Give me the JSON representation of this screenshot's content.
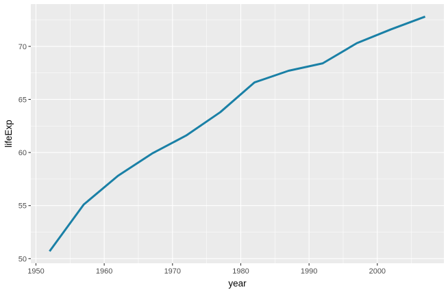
{
  "chart_data": {
    "type": "line",
    "xlabel": "year",
    "ylabel": "lifeExp",
    "xlim": [
      1949.25,
      2009.75
    ],
    "ylim": [
      49.57,
      73.98
    ],
    "x_ticks": [
      1950,
      1960,
      1970,
      1980,
      1990,
      2000
    ],
    "x_minor_ticks": [
      1955,
      1965,
      1975,
      1985,
      1995,
      2005
    ],
    "y_ticks": [
      50,
      55,
      60,
      65,
      70
    ],
    "y_minor_ticks": [
      52.5,
      57.5,
      62.5,
      67.5,
      72.5
    ],
    "grid": true,
    "legend": "none",
    "colors": {
      "panel": "#ebebeb",
      "line": "#1a80a6"
    },
    "x": [
      1952,
      1957,
      1962,
      1967,
      1972,
      1977,
      1982,
      1987,
      1992,
      1997,
      2002,
      2007
    ],
    "series": [
      {
        "values": [
          50.7,
          55.1,
          57.8,
          59.9,
          61.6,
          63.8,
          66.6,
          67.7,
          68.4,
          70.3,
          71.6,
          72.8
        ]
      }
    ]
  }
}
